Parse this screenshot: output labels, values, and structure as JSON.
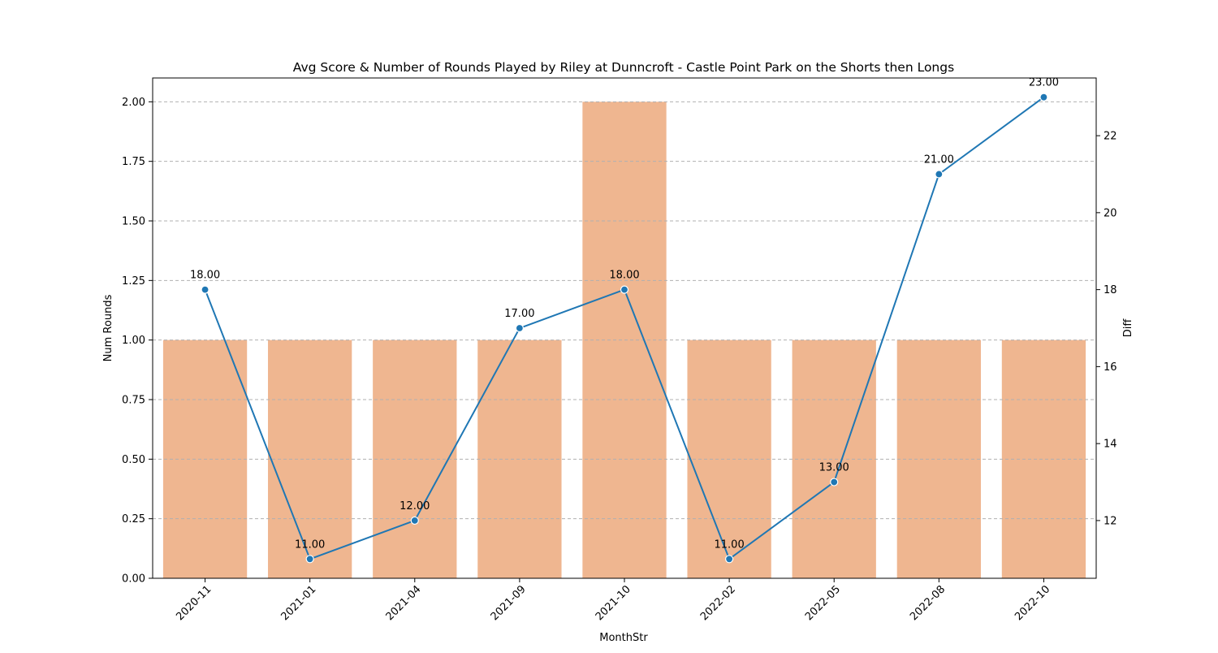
{
  "chart_data": {
    "type": "bar",
    "title": "Avg Score & Number of Rounds Played by Riley at Dunncroft - Castle Point Park on the Shorts then Longs",
    "xlabel": "MonthStr",
    "ylabel": "Num Rounds",
    "y2label": "Diff",
    "categories": [
      "2020-11",
      "2021-01",
      "2021-04",
      "2021-09",
      "2021-10",
      "2022-02",
      "2022-05",
      "2022-08",
      "2022-10"
    ],
    "ylim": [
      0,
      2.1
    ],
    "y2lim": [
      10.5,
      23.5
    ],
    "yticks": [
      "0.00",
      "0.25",
      "0.50",
      "0.75",
      "1.00",
      "1.25",
      "1.50",
      "1.75",
      "2.00"
    ],
    "y2ticks": [
      "12",
      "14",
      "16",
      "18",
      "20",
      "22"
    ],
    "grid": true,
    "series": [
      {
        "type": "bar",
        "axis": "left",
        "values": [
          1,
          1,
          1,
          1,
          2,
          1,
          1,
          1,
          1
        ],
        "color": "#EFB690"
      },
      {
        "type": "line",
        "axis": "right",
        "values": [
          18,
          11,
          12,
          17,
          18,
          11,
          13,
          21,
          23
        ],
        "labels": [
          "18.00",
          "11.00",
          "12.00",
          "17.00",
          "18.00",
          "11.00",
          "13.00",
          "21.00",
          "23.00"
        ],
        "color": "#1f77b4"
      }
    ]
  }
}
